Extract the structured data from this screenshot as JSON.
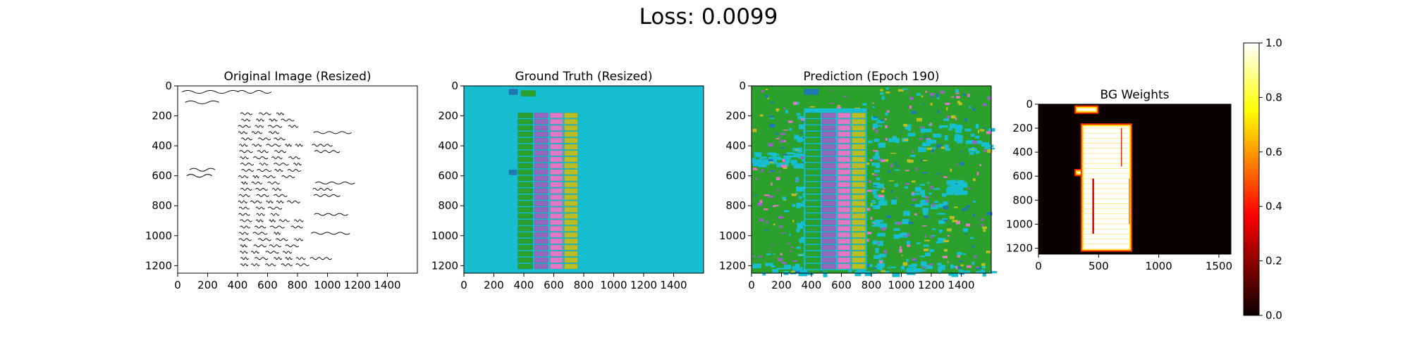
{
  "figure": {
    "suptitle": "Loss: 0.0099"
  },
  "panels": [
    {
      "title": "Original Image (Resized)",
      "kind": "document"
    },
    {
      "title": "Ground Truth (Resized)",
      "kind": "segmentation"
    },
    {
      "title": "Prediction (Epoch 190)",
      "kind": "segmentation_noisy"
    },
    {
      "title": "BG Weights",
      "kind": "weights"
    }
  ],
  "axes": {
    "x_ticks": [
      "0",
      "200",
      "400",
      "600",
      "800",
      "1000",
      "1200",
      "1400"
    ],
    "y_ticks": [
      "0",
      "200",
      "400",
      "600",
      "800",
      "1000",
      "1200"
    ],
    "weights_x_ticks": [
      "0",
      "500",
      "1000",
      "1500"
    ],
    "weights_y_ticks": [
      "0",
      "200",
      "400",
      "600",
      "800",
      "1000",
      "1200"
    ]
  },
  "colorbar": {
    "ticks": [
      "0.0",
      "0.2",
      "0.4",
      "0.6",
      "0.8",
      "1.0"
    ],
    "colormap": "hot"
  },
  "colors": {
    "background_class": "#17becf",
    "green_class": "#2ca02c",
    "purple_class": "#9467bd",
    "pink_class": "#e377c2",
    "olive_class": "#bcbd22",
    "blue_class": "#1f77b4",
    "weights_bg": "#0b0000"
  },
  "chart_data": [
    {
      "type": "heatmap",
      "title": "Original Image (Resized)",
      "xlim": [
        0,
        1600
      ],
      "ylim": [
        1250,
        0
      ],
      "x_ticks": [
        0,
        200,
        400,
        600,
        800,
        1000,
        1200,
        1400
      ],
      "y_ticks": [
        0,
        200,
        400,
        600,
        800,
        1000,
        1200
      ]
    },
    {
      "type": "heatmap",
      "title": "Ground Truth (Resized)",
      "xlim": [
        0,
        1600
      ],
      "ylim": [
        1250,
        0
      ],
      "x_ticks": [
        0,
        200,
        400,
        600,
        800,
        1000,
        1200,
        1400
      ],
      "y_ticks": [
        0,
        200,
        400,
        600,
        800,
        1000,
        1200
      ]
    },
    {
      "type": "heatmap",
      "title": "Prediction (Epoch 190)",
      "xlim": [
        0,
        1600
      ],
      "ylim": [
        1250,
        0
      ],
      "x_ticks": [
        0,
        200,
        400,
        600,
        800,
        1000,
        1200,
        1400
      ],
      "y_ticks": [
        0,
        200,
        400,
        600,
        800,
        1000,
        1200
      ]
    },
    {
      "type": "heatmap",
      "title": "BG Weights",
      "xlim": [
        0,
        1600
      ],
      "ylim": [
        1250,
        0
      ],
      "x_ticks": [
        0,
        500,
        1000,
        1500
      ],
      "y_ticks": [
        0,
        200,
        400,
        600,
        800,
        1000,
        1200
      ],
      "colorbar": {
        "min": 0.0,
        "max": 1.0,
        "ticks": [
          0.0,
          0.2,
          0.4,
          0.6,
          0.8,
          1.0
        ],
        "colormap": "hot"
      }
    }
  ]
}
